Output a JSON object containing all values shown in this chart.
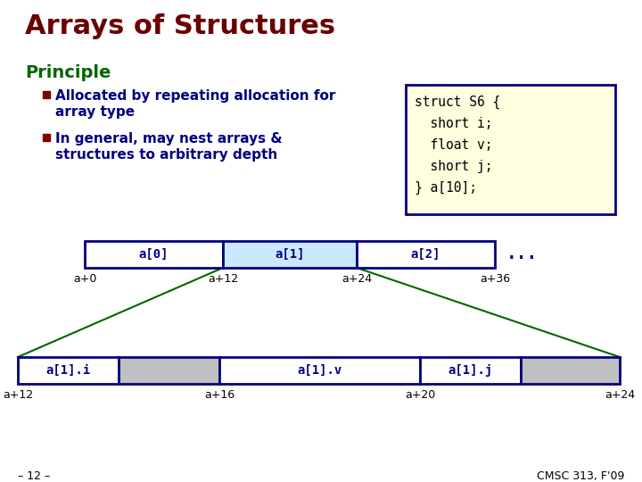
{
  "title": "Arrays of Structures",
  "title_color": "#6B0000",
  "principle_label": "Principle",
  "principle_color": "#006600",
  "bullet_color": "#800000",
  "bullet1_line1": "Allocated by repeating allocation for",
  "bullet1_line2": "array type",
  "bullet2_line1": "In general, may nest arrays &",
  "bullet2_line2": "structures to arbitrary depth",
  "text_color": "#000080",
  "code_bg": "#FFFFE0",
  "code_border": "#000080",
  "code_lines": [
    "struct S6 {",
    "  short i;",
    "  float v;",
    "  short j;",
    "} a[10];"
  ],
  "bg_color": "#FFFFFF",
  "top_array_labels": [
    "a[0]",
    "a[1]",
    "a[2]"
  ],
  "top_array_colors": [
    "#FFFFFF",
    "#CCE8FF",
    "#FFFFFF"
  ],
  "top_offset_labels": [
    "a+0",
    "a+12",
    "a+24",
    "a+36"
  ],
  "bottom_offset_labels": [
    "a+12",
    "a+16",
    "a+20",
    "a+24"
  ],
  "dots_text": "...",
  "footer_left": "– 12 –",
  "footer_right": "CMSC 313, F'09",
  "array_border": "#000080",
  "line_color": "#006600"
}
